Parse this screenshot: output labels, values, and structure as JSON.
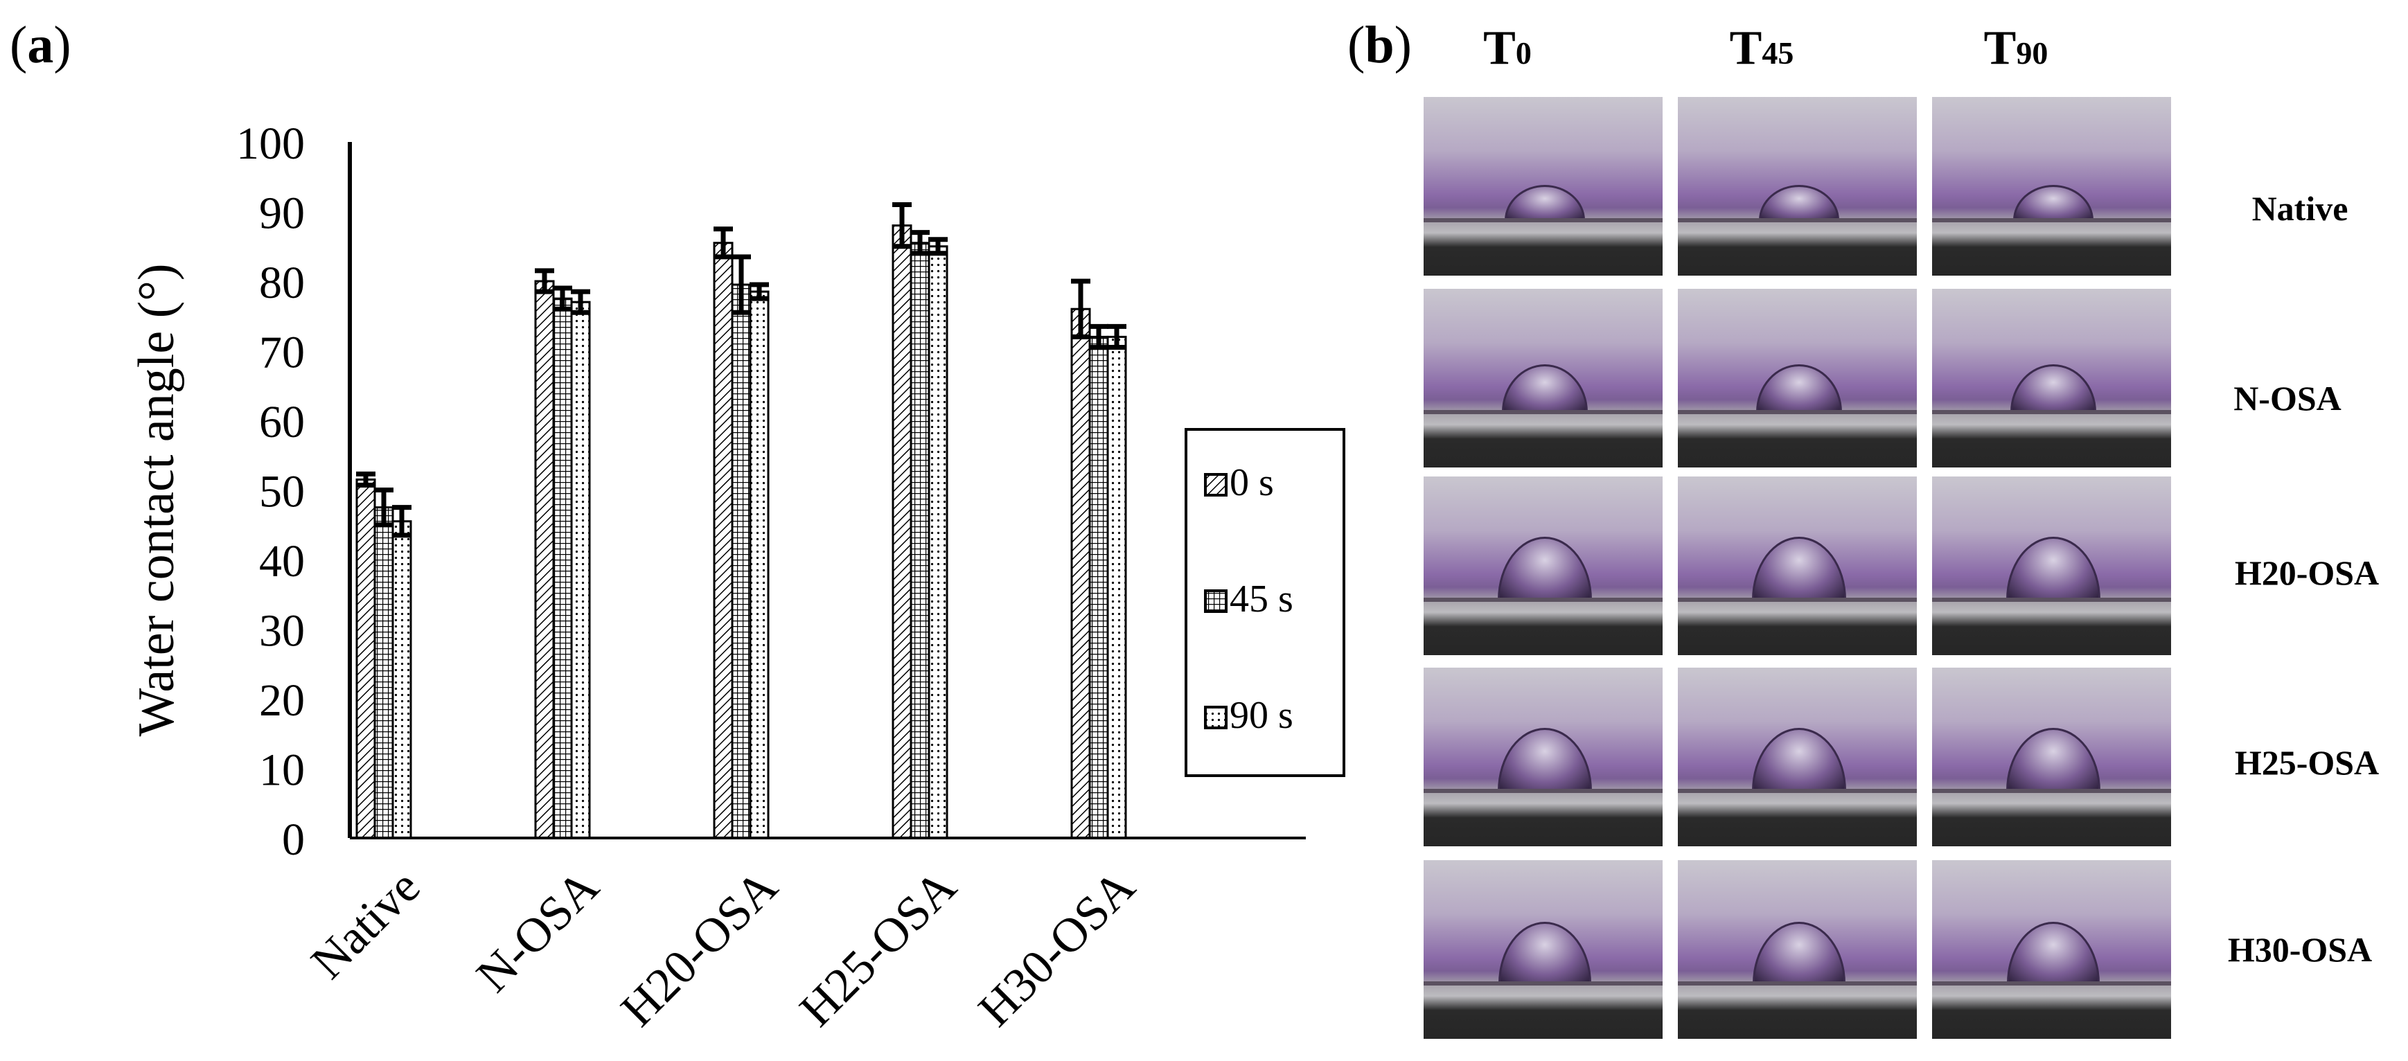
{
  "panel_a_label": {
    "open": "(",
    "letter": "a",
    "close": ")"
  },
  "panel_b_label": {
    "open": "(",
    "letter": "b",
    "close": ")"
  },
  "chart_data": {
    "type": "bar",
    "title": "",
    "xlabel": "",
    "ylabel": "Water contact angle (°)",
    "ylim": [
      0,
      100
    ],
    "yticks": [
      "0",
      "10",
      "20",
      "30",
      "40",
      "50",
      "60",
      "70",
      "80",
      "90",
      "100"
    ],
    "categories": [
      "Native",
      "N-OSA",
      "H20-OSA",
      "H25-OSA",
      "H30-OSA"
    ],
    "series": [
      {
        "name": "0 s",
        "pattern": "diagonal",
        "values": [
          51.5,
          80,
          85.5,
          88,
          76
        ],
        "errors": [
          0.8,
          1.5,
          2,
          3,
          4
        ]
      },
      {
        "name": "45 s",
        "pattern": "grid",
        "values": [
          47.5,
          77.5,
          79.5,
          85.5,
          72
        ],
        "errors": [
          2.5,
          1.5,
          4,
          1.5,
          1.5
        ]
      },
      {
        "name": "90 s",
        "pattern": "dotted",
        "values": [
          45.5,
          77,
          78.5,
          85,
          72
        ],
        "errors": [
          2,
          1.5,
          1,
          1,
          1.5
        ]
      }
    ],
    "legend_position": "right",
    "grid": false
  },
  "photo_panel": {
    "columns": [
      {
        "base": "T",
        "sub": "0"
      },
      {
        "base": "T",
        "sub": "45"
      },
      {
        "base": "T",
        "sub": "90"
      }
    ],
    "rows": [
      "Native",
      "N-OSA",
      "H20-OSA",
      "H25-OSA",
      "H30-OSA"
    ]
  }
}
